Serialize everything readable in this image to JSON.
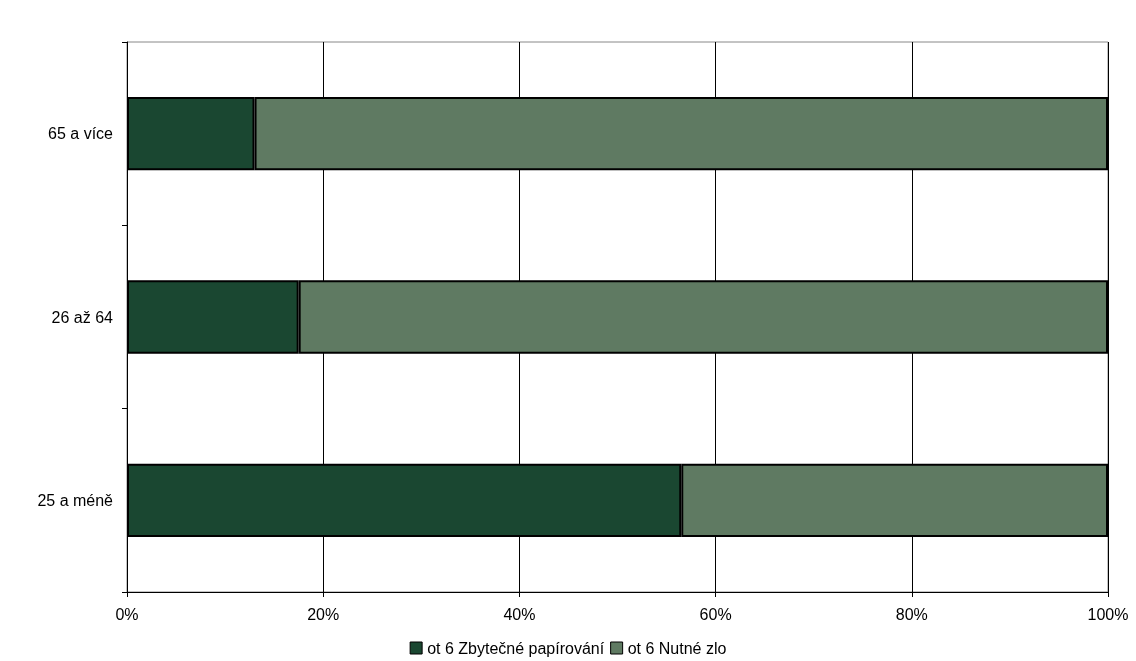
{
  "chart_data": {
    "type": "bar",
    "orientation": "horizontal",
    "stacked": true,
    "categories": [
      "65 a více",
      "26 až 64",
      "25 a méně"
    ],
    "series": [
      {
        "name": "ot 6 Zbytečné papírování",
        "color": "#1a4731",
        "values": [
          13,
          17.5,
          56.5
        ]
      },
      {
        "name": "ot 6 Nutné zlo",
        "color": "#5f7a62",
        "values": [
          87,
          82.5,
          43.5
        ]
      }
    ],
    "xlim": [
      0,
      100
    ],
    "xticks": [
      {
        "value": 0,
        "label": "0%"
      },
      {
        "value": 20,
        "label": "20%"
      },
      {
        "value": 40,
        "label": "40%"
      },
      {
        "value": 60,
        "label": "60%"
      },
      {
        "value": 80,
        "label": "80%"
      },
      {
        "value": 100,
        "label": "100%"
      }
    ],
    "grid": "x",
    "legend": "bottom"
  }
}
